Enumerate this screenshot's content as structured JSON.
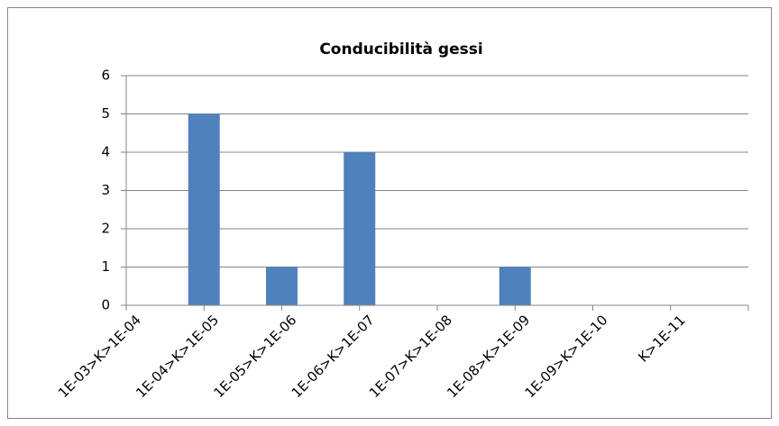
{
  "chart_data": {
    "type": "bar",
    "title": "Conducibilità gessi",
    "categories": [
      "1E-03>K>1E-04",
      "1E-04>K>1E-05",
      "1E-05>K>1E-06",
      "1E-06>K>1E-07",
      "1E-07>K>1E-08",
      "1E-08>K>1E-09",
      "1E-09>K>1E-10",
      "K>1E-11"
    ],
    "values": [
      0,
      5,
      1,
      4,
      0,
      1,
      0,
      0
    ],
    "color": "#4f81bd",
    "ylim": [
      0,
      6
    ],
    "yticks": [
      0,
      1,
      2,
      3,
      4,
      5,
      6
    ],
    "grid": true
  }
}
